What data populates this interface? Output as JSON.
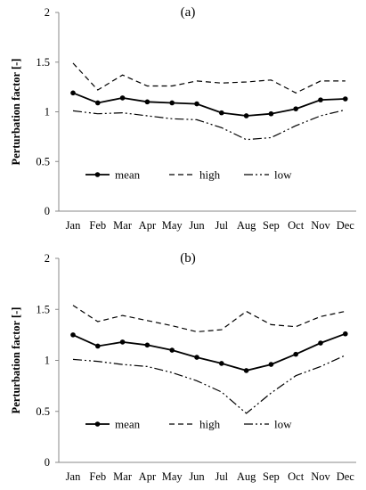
{
  "chart_data": [
    {
      "type": "line",
      "title": "(a)",
      "xlabel": "",
      "ylabel": "Perturbation factor [-]",
      "categories": [
        "Jan",
        "Feb",
        "Mar",
        "Apr",
        "May",
        "Jun",
        "Jul",
        "Aug",
        "Sep",
        "Oct",
        "Nov",
        "Dec"
      ],
      "ylim": [
        0,
        2
      ],
      "yticks": [
        "0",
        "0.5",
        "1",
        "1.5",
        "2"
      ],
      "grid": false,
      "legend_position": "bottom-left",
      "series": [
        {
          "name": "mean",
          "style": "solid-marker",
          "values": [
            1.19,
            1.09,
            1.14,
            1.1,
            1.09,
            1.08,
            0.99,
            0.96,
            0.98,
            1.03,
            1.12,
            1.13
          ]
        },
        {
          "name": "high",
          "style": "dashed",
          "values": [
            1.49,
            1.22,
            1.37,
            1.26,
            1.26,
            1.31,
            1.29,
            1.3,
            1.32,
            1.19,
            1.31,
            1.31
          ]
        },
        {
          "name": "low",
          "style": "dash-dot-dot",
          "values": [
            1.01,
            0.98,
            0.99,
            0.96,
            0.93,
            0.92,
            0.84,
            0.72,
            0.74,
            0.86,
            0.96,
            1.02
          ]
        }
      ]
    },
    {
      "type": "line",
      "title": "(b)",
      "xlabel": "",
      "ylabel": "Perturbation factor [-]",
      "categories": [
        "Jan",
        "Feb",
        "Mar",
        "Apr",
        "May",
        "Jun",
        "Jul",
        "Aug",
        "Sep",
        "Oct",
        "Nov",
        "Dec"
      ],
      "ylim": [
        0,
        2
      ],
      "yticks": [
        "0",
        "0.5",
        "1",
        "1.5",
        "2"
      ],
      "grid": false,
      "legend_position": "bottom-left",
      "series": [
        {
          "name": "mean",
          "style": "solid-marker",
          "values": [
            1.25,
            1.14,
            1.18,
            1.15,
            1.1,
            1.03,
            0.97,
            0.9,
            0.96,
            1.06,
            1.17,
            1.26
          ]
        },
        {
          "name": "high",
          "style": "dashed",
          "values": [
            1.54,
            1.38,
            1.44,
            1.39,
            1.34,
            1.28,
            1.3,
            1.48,
            1.35,
            1.33,
            1.43,
            1.48
          ]
        },
        {
          "name": "low",
          "style": "dash-dot-dot",
          "values": [
            1.01,
            0.99,
            0.96,
            0.94,
            0.88,
            0.8,
            0.69,
            0.48,
            0.68,
            0.85,
            0.94,
            1.05
          ]
        }
      ]
    }
  ]
}
